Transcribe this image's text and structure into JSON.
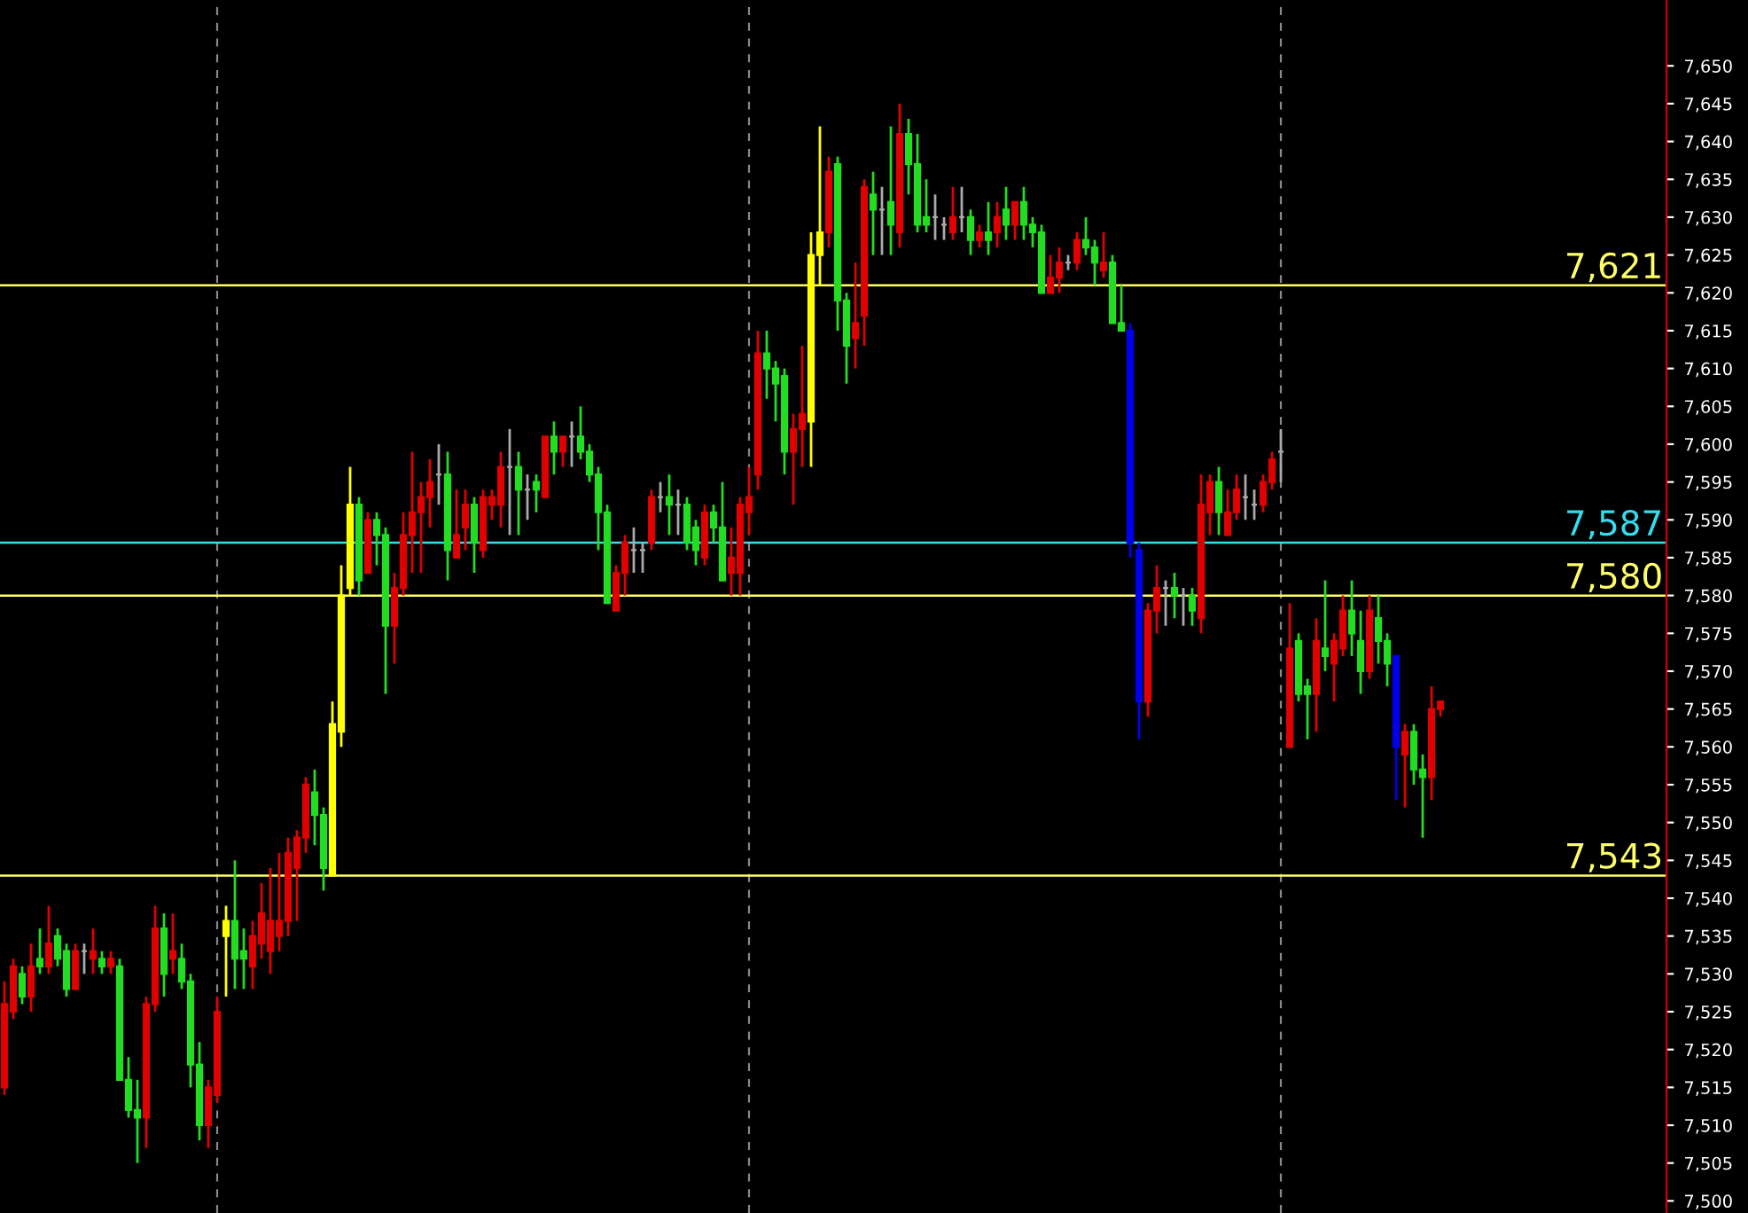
{
  "chart_data": {
    "type": "candlestick",
    "categories": [
      null,
      null,
      null,
      null,
      null,
      null,
      null,
      null,
      null,
      null,
      null,
      null,
      null,
      null,
      null,
      null,
      null,
      null,
      null,
      null,
      null,
      null,
      null,
      null,
      null,
      null,
      null,
      null,
      null,
      null,
      null,
      null,
      null,
      null,
      null,
      null,
      null,
      null,
      null,
      null,
      null,
      null,
      null,
      null,
      null,
      null,
      null,
      null,
      null,
      null,
      null,
      null,
      null,
      null,
      null,
      null,
      null,
      null,
      null,
      null,
      null,
      null,
      null,
      null,
      null,
      null,
      null,
      null,
      null,
      null,
      null,
      null,
      null,
      null,
      null,
      null,
      null,
      null,
      null,
      null,
      null,
      null,
      null,
      null,
      null,
      null,
      null,
      null,
      null,
      null,
      null,
      null,
      null,
      null,
      null,
      null,
      null,
      null,
      null,
      null,
      null,
      null,
      null,
      null,
      null,
      null,
      null,
      null,
      null,
      null,
      null,
      null,
      null,
      null,
      null,
      null,
      null,
      null,
      null,
      null,
      null,
      null,
      null,
      null,
      null,
      null,
      null,
      null,
      null,
      null,
      null,
      null,
      null,
      null,
      null,
      null,
      null,
      null,
      null,
      null,
      null,
      null,
      null,
      null,
      null,
      null,
      null,
      null,
      null,
      null,
      null,
      null,
      null,
      null,
      null,
      null,
      null,
      null,
      null,
      null,
      null,
      null,
      null,
      null,
      null,
      null,
      null,
      null,
      null,
      null,
      null,
      null,
      null,
      null,
      null,
      null,
      null,
      null,
      null,
      null,
      null,
      null,
      null,
      null,
      null,
      null,
      null,
      null
    ],
    "ohlc": [
      [
        7515,
        7529,
        7514,
        7526
      ],
      [
        7525,
        7532,
        7524,
        7531
      ],
      [
        7530,
        7531,
        7526,
        7527
      ],
      [
        7527,
        7534,
        7525,
        7531
      ],
      [
        7532,
        7536,
        7530,
        7531
      ],
      [
        7531,
        7539,
        7530,
        7534
      ],
      [
        7535,
        7536,
        7531,
        7532
      ],
      [
        7533,
        7534,
        7527,
        7528
      ],
      [
        7528,
        7534,
        7528,
        7533
      ],
      [
        7533,
        7534,
        7530,
        7533
      ],
      [
        7532,
        7536,
        7530,
        7533
      ],
      [
        7532,
        7533,
        7530,
        7531
      ],
      [
        7531,
        7533,
        7530,
        7532
      ],
      [
        7531,
        7532,
        7516,
        7516
      ],
      [
        7516,
        7519,
        7511,
        7512
      ],
      [
        7512,
        7516,
        7505,
        7511
      ],
      [
        7511,
        7527,
        7507,
        7526
      ],
      [
        7526,
        7539,
        7525,
        7536
      ],
      [
        7536,
        7538,
        7527,
        7530
      ],
      [
        7532,
        7538,
        7530,
        7533
      ],
      [
        7532,
        7534,
        7528,
        7529
      ],
      [
        7529,
        7530,
        7515,
        7518
      ],
      [
        7518,
        7521,
        7508,
        7510
      ],
      [
        7510,
        7516,
        7507,
        7515
      ],
      [
        7514,
        7527,
        7513,
        7525
      ],
      [
        7535,
        7539,
        7527,
        7537
      ],
      [
        7537,
        7545,
        7528,
        7532
      ],
      [
        7533,
        7536,
        7528,
        7532
      ],
      [
        7531,
        7537,
        7528,
        7535
      ],
      [
        7534,
        7542,
        7532,
        7538
      ],
      [
        7533,
        7544,
        7530,
        7537
      ],
      [
        7535,
        7546,
        7533,
        7537
      ],
      [
        7537,
        7548,
        7535,
        7546
      ],
      [
        7544,
        7549,
        7537,
        7548
      ],
      [
        7548,
        7556,
        7546,
        7555
      ],
      [
        7554,
        7557,
        7547,
        7551
      ],
      [
        7551,
        7552,
        7541,
        7544
      ],
      [
        7543,
        7566,
        7543,
        7563
      ],
      [
        7562,
        7584,
        7560,
        7580
      ],
      [
        7581,
        7597,
        7580,
        7592
      ],
      [
        7592,
        7593,
        7580,
        7582
      ],
      [
        7583,
        7591,
        7583,
        7590
      ],
      [
        7590,
        7591,
        7584,
        7588
      ],
      [
        7588,
        7589,
        7567,
        7576
      ],
      [
        7576,
        7583,
        7571,
        7581
      ],
      [
        7581,
        7591,
        7580,
        7588
      ],
      [
        7588,
        7599,
        7583,
        7591
      ],
      [
        7591,
        7595,
        7583,
        7593
      ],
      [
        7593,
        7598,
        7589,
        7595
      ],
      [
        7596,
        7600,
        7592,
        7596
      ],
      [
        7596,
        7599,
        7582,
        7586
      ],
      [
        7585,
        7594,
        7585,
        7588
      ],
      [
        7589,
        7594,
        7586,
        7592
      ],
      [
        7592,
        7593,
        7583,
        7587
      ],
      [
        7586,
        7594,
        7585,
        7593
      ],
      [
        7592,
        7594,
        7590,
        7593
      ],
      [
        7592,
        7599,
        7589,
        7597
      ],
      [
        7597,
        7602,
        7588,
        7597
      ],
      [
        7597,
        7599,
        7588,
        7594
      ],
      [
        7594,
        7596,
        7590,
        7594
      ],
      [
        7595,
        7596,
        7591,
        7594
      ],
      [
        7593,
        7601,
        7593,
        7601
      ],
      [
        7601,
        7603,
        7596,
        7599
      ],
      [
        7599,
        7601,
        7597,
        7601
      ],
      [
        7601,
        7603,
        7597,
        7601
      ],
      [
        7601,
        7605,
        7598,
        7599
      ],
      [
        7599,
        7600,
        7595,
        7596
      ],
      [
        7596,
        7597,
        7586,
        7591
      ],
      [
        7591,
        7592,
        7579,
        7579
      ],
      [
        7578,
        7584,
        7578,
        7583
      ],
      [
        7583,
        7588,
        7580,
        7587
      ],
      [
        7586,
        7589,
        7583,
        7586
      ],
      [
        7586,
        7587,
        7583,
        7586
      ],
      [
        7587,
        7594,
        7586,
        7593
      ],
      [
        7593,
        7595,
        7591,
        7593
      ],
      [
        7593,
        7596,
        7588,
        7592
      ],
      [
        7592,
        7594,
        7588,
        7592
      ],
      [
        7592,
        7593,
        7586,
        7587
      ],
      [
        7589,
        7590,
        7584,
        7586
      ],
      [
        7585,
        7592,
        7584,
        7591
      ],
      [
        7591,
        7592,
        7587,
        7589
      ],
      [
        7589,
        7595,
        7582,
        7582
      ],
      [
        7583,
        7589,
        7580,
        7585
      ],
      [
        7583,
        7593,
        7580,
        7592
      ],
      [
        7591,
        7597,
        7588,
        7593
      ],
      [
        7596,
        7615,
        7594,
        7612
      ],
      [
        7612,
        7615,
        7606,
        7610
      ],
      [
        7610,
        7611,
        7603,
        7608
      ],
      [
        7609,
        7610,
        7596,
        7599
      ],
      [
        7599,
        7604,
        7592,
        7602
      ],
      [
        7602,
        7613,
        7597,
        7604
      ],
      [
        7603,
        7628,
        7597,
        7625
      ],
      [
        7625,
        7642,
        7621,
        7628
      ],
      [
        7628,
        7638,
        7626,
        7636
      ],
      [
        7637,
        7638,
        7615,
        7619
      ],
      [
        7619,
        7620,
        7608,
        7613
      ],
      [
        7614,
        7624,
        7610,
        7616
      ],
      [
        7617,
        7635,
        7613,
        7634
      ],
      [
        7633,
        7636,
        7625,
        7631
      ],
      [
        7631,
        7634,
        7625,
        7631
      ],
      [
        7632,
        7642,
        7625,
        7629
      ],
      [
        7628,
        7645,
        7626,
        7641
      ],
      [
        7641,
        7643,
        7633,
        7637
      ],
      [
        7637,
        7641,
        7628,
        7629
      ],
      [
        7630,
        7635,
        7628,
        7629
      ],
      [
        7630,
        7633,
        7627,
        7630
      ],
      [
        7629,
        7630,
        7627,
        7629
      ],
      [
        7628,
        7634,
        7627,
        7630
      ],
      [
        7630,
        7634,
        7628,
        7630
      ],
      [
        7630,
        7631,
        7625,
        7627
      ],
      [
        7627,
        7629,
        7626,
        7628
      ],
      [
        7628,
        7632,
        7625,
        7627
      ],
      [
        7628,
        7632,
        7626,
        7630
      ],
      [
        7631,
        7634,
        7627,
        7629
      ],
      [
        7629,
        7632,
        7627,
        7632
      ],
      [
        7632,
        7634,
        7627,
        7629
      ],
      [
        7629,
        7630,
        7626,
        7628
      ],
      [
        7628,
        7629,
        7620,
        7620
      ],
      [
        7620,
        7625,
        7620,
        7622
      ],
      [
        7622,
        7626,
        7620,
        7624
      ],
      [
        7624,
        7625,
        7623,
        7624
      ],
      [
        7624,
        7628,
        7623,
        7627
      ],
      [
        7627,
        7630,
        7625,
        7626
      ],
      [
        7626,
        7627,
        7621,
        7624
      ],
      [
        7623,
        7628,
        7622,
        7624
      ],
      [
        7624,
        7625,
        7616,
        7616
      ],
      [
        7616,
        7621,
        7615,
        7615
      ],
      [
        7615,
        7616,
        7585,
        7587
      ],
      [
        7586,
        7587,
        7561,
        7566
      ],
      [
        7566,
        7579,
        7564,
        7578
      ],
      [
        7578,
        7584,
        7575,
        7581
      ],
      [
        7581,
        7582,
        7576,
        7581
      ],
      [
        7581,
        7583,
        7577,
        7580
      ],
      [
        7580,
        7581,
        7576,
        7580
      ],
      [
        7580,
        7581,
        7576,
        7578
      ],
      [
        7577,
        7596,
        7575,
        7592
      ],
      [
        7591,
        7596,
        7588,
        7595
      ],
      [
        7595,
        7597,
        7588,
        7591
      ],
      [
        7588,
        7594,
        7588,
        7591
      ],
      [
        7591,
        7596,
        7590,
        7594
      ],
      [
        7593,
        7596,
        7590,
        7593
      ],
      [
        7592,
        7594,
        7590,
        7592
      ],
      [
        7592,
        7596,
        7591,
        7595
      ],
      [
        7595,
        7599,
        7594,
        7598
      ],
      [
        7599,
        7602,
        7595,
        7599
      ],
      [
        7560,
        7579,
        7560,
        7573
      ],
      [
        7574,
        7575,
        7566,
        7567
      ],
      [
        7568,
        7569,
        7561,
        7567
      ],
      [
        7567,
        7577,
        7562,
        7574
      ],
      [
        7573,
        7582,
        7570,
        7572
      ],
      [
        7571,
        7575,
        7566,
        7574
      ],
      [
        7573,
        7580,
        7572,
        7578
      ],
      [
        7578,
        7582,
        7572,
        7575
      ],
      [
        7574,
        7578,
        7567,
        7570
      ],
      [
        7570,
        7580,
        7569,
        7578
      ],
      [
        7577,
        7580,
        7571,
        7574
      ],
      [
        7574,
        7575,
        7568,
        7571
      ],
      [
        7572,
        7572,
        7553,
        7560
      ],
      [
        7559,
        7563,
        7552,
        7562
      ],
      [
        7562,
        7563,
        7555,
        7557
      ],
      [
        7557,
        7559,
        7548,
        7556
      ],
      [
        7556,
        7568,
        7553,
        7565
      ],
      [
        7565,
        7566,
        7564,
        7566
      ],
      null,
      null,
      null,
      null,
      null,
      null,
      null,
      null,
      null,
      null,
      null,
      null,
      null,
      null,
      null,
      null,
      null,
      null,
      null,
      null,
      null,
      null,
      null,
      null,
      null
    ],
    "colors": [
      "#e00000",
      "#e00000",
      "#22dd22",
      "#e00000",
      "#22dd22",
      "#e00000",
      "#22dd22",
      "#22dd22",
      "#e00000",
      "#aaaaaa",
      "#e00000",
      "#22dd22",
      "#e00000",
      "#22dd22",
      "#22dd22",
      "#22dd22",
      "#e00000",
      "#e00000",
      "#22dd22",
      "#e00000",
      "#22dd22",
      "#22dd22",
      "#22dd22",
      "#e00000",
      "#e00000",
      "#ffff00",
      "#22dd22",
      "#22dd22",
      "#e00000",
      "#e00000",
      "#e00000",
      "#e00000",
      "#e00000",
      "#e00000",
      "#e00000",
      "#22dd22",
      "#22dd22",
      "#ffff00",
      "#ffff00",
      "#ffff00",
      "#22dd22",
      "#e00000",
      "#22dd22",
      "#22dd22",
      "#e00000",
      "#e00000",
      "#e00000",
      "#e00000",
      "#e00000",
      "#aaaaaa",
      "#22dd22",
      "#e00000",
      "#e00000",
      "#22dd22",
      "#e00000",
      "#e00000",
      "#e00000",
      "#aaaaaa",
      "#22dd22",
      "#aaaaaa",
      "#22dd22",
      "#e00000",
      "#22dd22",
      "#e00000",
      "#aaaaaa",
      "#22dd22",
      "#22dd22",
      "#22dd22",
      "#22dd22",
      "#e00000",
      "#e00000",
      "#aaaaaa",
      "#aaaaaa",
      "#e00000",
      "#aaaaaa",
      "#22dd22",
      "#aaaaaa",
      "#22dd22",
      "#22dd22",
      "#e00000",
      "#22dd22",
      "#22dd22",
      "#e00000",
      "#e00000",
      "#e00000",
      "#e00000",
      "#22dd22",
      "#22dd22",
      "#22dd22",
      "#e00000",
      "#e00000",
      "#ffff00",
      "#ffff00",
      "#e00000",
      "#22dd22",
      "#22dd22",
      "#e00000",
      "#e00000",
      "#22dd22",
      "#aaaaaa",
      "#22dd22",
      "#e00000",
      "#22dd22",
      "#22dd22",
      "#22dd22",
      "#aaaaaa",
      "#aaaaaa",
      "#e00000",
      "#aaaaaa",
      "#22dd22",
      "#e00000",
      "#22dd22",
      "#e00000",
      "#22dd22",
      "#e00000",
      "#22dd22",
      "#22dd22",
      "#22dd22",
      "#e00000",
      "#e00000",
      "#aaaaaa",
      "#e00000",
      "#22dd22",
      "#22dd22",
      "#e00000",
      "#22dd22",
      "#22dd22",
      "#0000ee",
      "#0000ee",
      "#e00000",
      "#e00000",
      "#aaaaaa",
      "#22dd22",
      "#aaaaaa",
      "#22dd22",
      "#e00000",
      "#e00000",
      "#22dd22",
      "#e00000",
      "#e00000",
      "#aaaaaa",
      "#aaaaaa",
      "#e00000",
      "#e00000",
      "#aaaaaa",
      "#e00000",
      "#22dd22",
      "#22dd22",
      "#e00000",
      "#22dd22",
      "#e00000",
      "#e00000",
      "#22dd22",
      "#22dd22",
      "#e00000",
      "#22dd22",
      "#22dd22",
      "#0000ee",
      "#e00000",
      "#22dd22",
      "#22dd22",
      "#e00000",
      "#e00000",
      null,
      null,
      null,
      null,
      null,
      null,
      null,
      null,
      null,
      null,
      null,
      null,
      null,
      null,
      null,
      null,
      null,
      null,
      null,
      null,
      null,
      null,
      null,
      null,
      null
    ],
    "ylim": [
      7498.4,
      7658.7
    ],
    "yticks": [
      {
        "value": 7500,
        "label": "7,500"
      },
      {
        "value": 7505,
        "label": "7,505"
      },
      {
        "value": 7510,
        "label": "7,510"
      },
      {
        "value": 7515,
        "label": "7,515"
      },
      {
        "value": 7520,
        "label": "7,520"
      },
      {
        "value": 7525,
        "label": "7,525"
      },
      {
        "value": 7530,
        "label": "7,530"
      },
      {
        "value": 7535,
        "label": "7,535"
      },
      {
        "value": 7540,
        "label": "7,540"
      },
      {
        "value": 7545,
        "label": "7,545"
      },
      {
        "value": 7550,
        "label": "7,550"
      },
      {
        "value": 7555,
        "label": "7,555"
      },
      {
        "value": 7560,
        "label": "7,560"
      },
      {
        "value": 7565,
        "label": "7,565"
      },
      {
        "value": 7570,
        "label": "7,570"
      },
      {
        "value": 7575,
        "label": "7,575"
      },
      {
        "value": 7580,
        "label": "7,580"
      },
      {
        "value": 7585,
        "label": "7,585"
      },
      {
        "value": 7590,
        "label": "7,590"
      },
      {
        "value": 7595,
        "label": "7,595"
      },
      {
        "value": 7600,
        "label": "7,600"
      },
      {
        "value": 7605,
        "label": "7,605"
      },
      {
        "value": 7610,
        "label": "7,610"
      },
      {
        "value": 7615,
        "label": "7,615"
      },
      {
        "value": 7620,
        "label": "7,620"
      },
      {
        "value": 7625,
        "label": "7,625"
      },
      {
        "value": 7630,
        "label": "7,630"
      },
      {
        "value": 7635,
        "label": "7,635"
      },
      {
        "value": 7640,
        "label": "7,640"
      },
      {
        "value": 7645,
        "label": "7,645"
      },
      {
        "value": 7650,
        "label": "7,650"
      }
    ],
    "ref_lines": [
      {
        "axis": "y",
        "value": 7621,
        "label": "7,621",
        "color": "#ffff66"
      },
      {
        "axis": "y",
        "value": 7587,
        "label": "7,587",
        "color": "#33ddee"
      },
      {
        "axis": "y",
        "value": 7580,
        "label": "7,580",
        "color": "#ffff66"
      },
      {
        "axis": "y",
        "value": 7543,
        "label": "7,543",
        "color": "#ffff66"
      }
    ]
  }
}
